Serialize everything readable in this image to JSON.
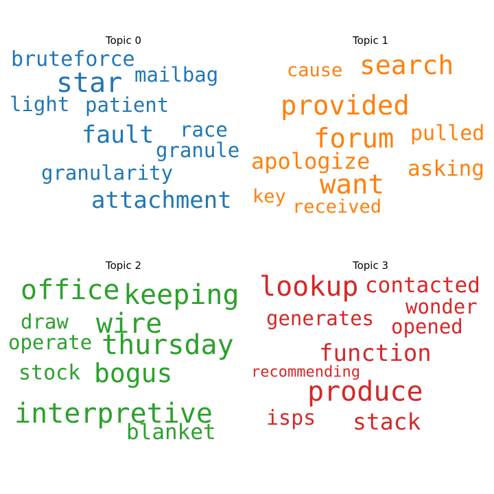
{
  "chart_data": [
    {
      "type": "wordcloud",
      "title": "Topic 0",
      "color": "#1f77b4",
      "words": [
        "bruteforce",
        "star",
        "mailbag",
        "light",
        "patient",
        "race",
        "fault",
        "granule",
        "granularity",
        "attachment"
      ]
    },
    {
      "type": "wordcloud",
      "title": "Topic 1",
      "color": "#ff7f0e",
      "words": [
        "cause",
        "search",
        "provided",
        "pulled",
        "forum",
        "apologize",
        "asking",
        "want",
        "key",
        "received"
      ]
    },
    {
      "type": "wordcloud",
      "title": "Topic 2",
      "color": "#2ca02c",
      "words": [
        "office",
        "keeping",
        "draw",
        "wire",
        "operate",
        "thursday",
        "stock",
        "bogus",
        "interpretive",
        "blanket"
      ]
    },
    {
      "type": "wordcloud",
      "title": "Topic 3",
      "color": "#d62728",
      "words": [
        "lookup",
        "contacted",
        "wonder",
        "generates",
        "opened",
        "function",
        "recommending",
        "produce",
        "isps",
        "stack"
      ]
    }
  ]
}
